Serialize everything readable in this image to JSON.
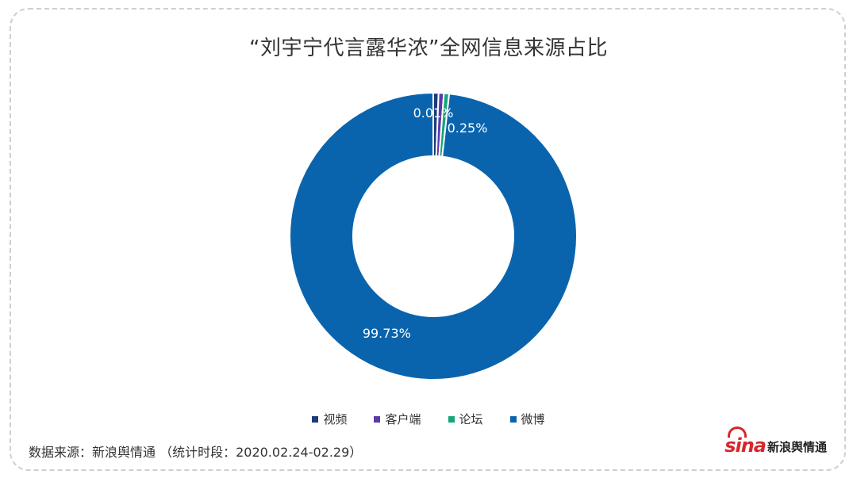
{
  "title": "“刘宇宁代言露华浓”全网信息来源占比",
  "source": "数据来源：新浪舆情通  （统计时段：2020.02.24-02.29）",
  "logo": {
    "mark": "sina",
    "text": "新浪舆情通"
  },
  "colors": {
    "视频": "#1f3a7a",
    "客户端": "#5b3aa8",
    "论坛": "#16a57a",
    "微博": "#0a64ad"
  },
  "chart_data": {
    "type": "pie",
    "donut": true,
    "categories": [
      "视频",
      "客户端",
      "论坛",
      "微博"
    ],
    "values": [
      0.01,
      0.01,
      0.25,
      99.73
    ],
    "data_labels": [
      "",
      "0.01%",
      "0.25%",
      "99.73%"
    ],
    "legend_position": "bottom"
  }
}
